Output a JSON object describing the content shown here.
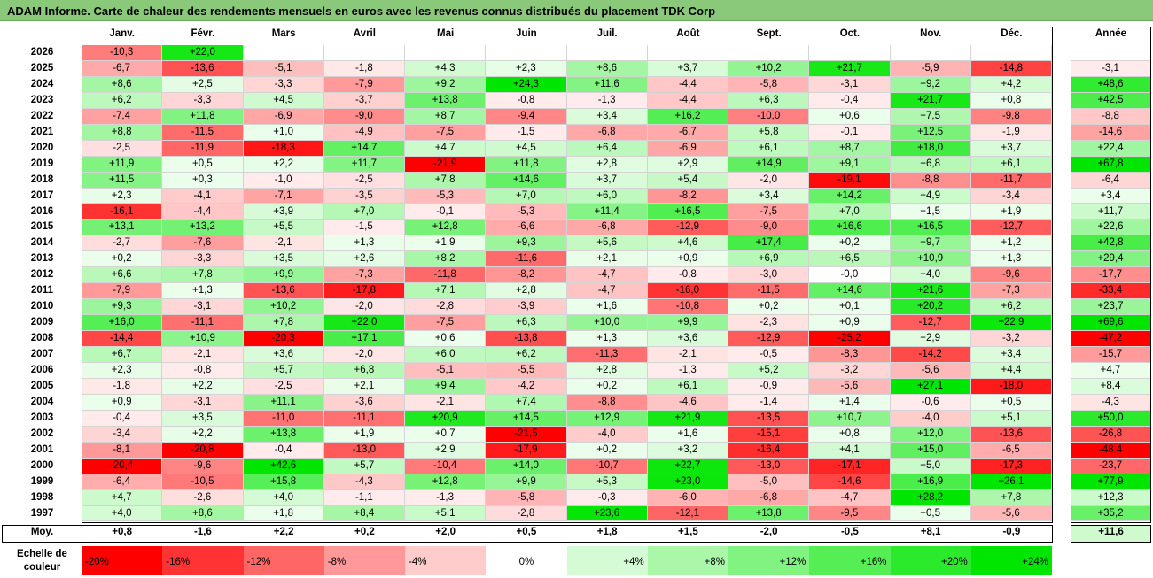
{
  "title": "ADAM Informe. Carte de chaleur des rendements mensuels en euros avec les revenus connus distribués du placement TDK Corp",
  "chart_data": {
    "type": "heatmap",
    "title": "ADAM Informe. Carte de chaleur des rendements mensuels en euros avec les revenus connus distribués du placement TDK Corp",
    "months": [
      "Janv.",
      "Févr.",
      "Mars",
      "Avril",
      "Mai",
      "Juin",
      "Juil.",
      "Août",
      "Sept.",
      "Oct.",
      "Nov.",
      "Déc."
    ],
    "year_label": "Année",
    "rows": [
      {
        "year": "2026",
        "months": [
          "-10,3",
          "+22,0",
          "",
          "",
          "",
          "",
          "",
          "",
          "",
          "",
          "",
          ""
        ],
        "annual": ""
      },
      {
        "year": "2025",
        "months": [
          "-6,7",
          "-13,6",
          "-5,1",
          "-1,8",
          "+4,3",
          "+2,3",
          "+8,6",
          "+3,7",
          "+10,2",
          "+21,7",
          "-5,9",
          "-14,8"
        ],
        "annual": "-3,1"
      },
      {
        "year": "2024",
        "months": [
          "+8,6",
          "+2,5",
          "-3,3",
          "-7,9",
          "+9,2",
          "+24,3",
          "+11,6",
          "-4,4",
          "-5,8",
          "-3,1",
          "+9,2",
          "+4,2"
        ],
        "annual": "+48,6"
      },
      {
        "year": "2023",
        "months": [
          "+6,2",
          "-3,3",
          "+4,5",
          "-3,7",
          "+13,8",
          "-0,8",
          "-1,3",
          "-4,4",
          "+6,3",
          "-0,4",
          "+21,7",
          "+0,8"
        ],
        "annual": "+42,5"
      },
      {
        "year": "2022",
        "months": [
          "-7,4",
          "+11,8",
          "-6,9",
          "-9,0",
          "+8,7",
          "-9,4",
          "+3,4",
          "+16,2",
          "-10,0",
          "+0,6",
          "+7,5",
          "-9,8"
        ],
        "annual": "-8,8"
      },
      {
        "year": "2021",
        "months": [
          "+8,8",
          "-11,5",
          "+1,0",
          "-4,9",
          "-7,5",
          "-1,5",
          "-6,8",
          "-6,7",
          "+5,8",
          "-0,1",
          "+12,5",
          "-1,9"
        ],
        "annual": "-14,6"
      },
      {
        "year": "2020",
        "months": [
          "-2,5",
          "-11,9",
          "-18,3",
          "+14,7",
          "+4,7",
          "+4,5",
          "+6,4",
          "-6,9",
          "+6,1",
          "+8,7",
          "+18,0",
          "+3,7"
        ],
        "annual": "+22,4"
      },
      {
        "year": "2019",
        "months": [
          "+11,9",
          "+0,5",
          "+2,2",
          "+11,7",
          "-21,9",
          "+11,8",
          "+2,8",
          "+2,9",
          "+14,9",
          "+9,1",
          "+6,8",
          "+6,1"
        ],
        "annual": "+67,8"
      },
      {
        "year": "2018",
        "months": [
          "+11,5",
          "+0,3",
          "-1,0",
          "-2,5",
          "+7,8",
          "+14,6",
          "+3,7",
          "+5,4",
          "-2,0",
          "-19,1",
          "-8,8",
          "-11,7"
        ],
        "annual": "-6,4"
      },
      {
        "year": "2017",
        "months": [
          "+2,3",
          "-4,1",
          "-7,1",
          "-3,5",
          "-5,3",
          "+7,0",
          "+6,0",
          "-8,2",
          "+3,4",
          "+14,2",
          "+4,9",
          "-3,4"
        ],
        "annual": "+3,4"
      },
      {
        "year": "2016",
        "months": [
          "-16,1",
          "-4,4",
          "+3,9",
          "+7,0",
          "-0,1",
          "-5,3",
          "+11,4",
          "+16,5",
          "-7,5",
          "+7,0",
          "+1,5",
          "+1,9"
        ],
        "annual": "+11,7"
      },
      {
        "year": "2015",
        "months": [
          "+13,1",
          "+13,2",
          "+5,5",
          "-1,5",
          "+12,8",
          "-6,6",
          "-6,8",
          "-12,9",
          "-9,0",
          "+16,6",
          "+16,5",
          "-12,7"
        ],
        "annual": "+22,6"
      },
      {
        "year": "2014",
        "months": [
          "-2,7",
          "-7,6",
          "-2,1",
          "+1,3",
          "+1,9",
          "+9,3",
          "+5,6",
          "+4,6",
          "+17,4",
          "+0,2",
          "+9,7",
          "+1,2"
        ],
        "annual": "+42,8"
      },
      {
        "year": "2013",
        "months": [
          "+0,2",
          "-3,3",
          "+3,5",
          "+2,6",
          "+8,2",
          "-11,6",
          "+2,1",
          "+0,9",
          "+6,9",
          "+6,5",
          "+10,9",
          "+1,3"
        ],
        "annual": "+29,4"
      },
      {
        "year": "2012",
        "months": [
          "+6,6",
          "+7,8",
          "+9,9",
          "-7,3",
          "-11,8",
          "-8,2",
          "-4,7",
          "-0,8",
          "-3,0",
          "-0,0",
          "+4,0",
          "-9,6"
        ],
        "annual": "-17,7"
      },
      {
        "year": "2011",
        "months": [
          "-7,9",
          "+1,3",
          "-13,6",
          "-17,8",
          "+7,1",
          "+2,8",
          "-4,7",
          "-16,0",
          "-11,5",
          "+14,6",
          "+21,6",
          "-7,3"
        ],
        "annual": "-33,4"
      },
      {
        "year": "2010",
        "months": [
          "+9,3",
          "-3,1",
          "+10,2",
          "-2,0",
          "-2,8",
          "-3,9",
          "+1,6",
          "-10,8",
          "+0,2",
          "+0,1",
          "+20,2",
          "+6,2"
        ],
        "annual": "+23,7"
      },
      {
        "year": "2009",
        "months": [
          "+16,0",
          "-11,1",
          "+7,8",
          "+22,0",
          "-7,5",
          "+6,3",
          "+10,0",
          "+9,9",
          "-2,3",
          "+0,9",
          "-12,7",
          "+22,9"
        ],
        "annual": "+69,6"
      },
      {
        "year": "2008",
        "months": [
          "-14,4",
          "+10,9",
          "-20,3",
          "+17,1",
          "+0,6",
          "-13,8",
          "+1,3",
          "+3,6",
          "-12,9",
          "-25,2",
          "+2,9",
          "-3,2"
        ],
        "annual": "-47,2"
      },
      {
        "year": "2007",
        "months": [
          "+6,7",
          "-2,1",
          "+3,6",
          "-2,0",
          "+6,0",
          "+6,2",
          "-11,3",
          "-2,1",
          "-0,5",
          "-8,3",
          "-14,2",
          "+3,4"
        ],
        "annual": "-15,7"
      },
      {
        "year": "2006",
        "months": [
          "+2,3",
          "-0,8",
          "+5,7",
          "+6,8",
          "-5,1",
          "-5,5",
          "+2,8",
          "-1,3",
          "+5,2",
          "-3,2",
          "-5,6",
          "+4,4"
        ],
        "annual": "+4,7"
      },
      {
        "year": "2005",
        "months": [
          "-1,8",
          "+2,2",
          "-2,5",
          "+2,1",
          "+9,4",
          "-4,2",
          "+0,2",
          "+6,1",
          "-0,9",
          "-5,6",
          "+27,1",
          "-18,0"
        ],
        "annual": "+8,4"
      },
      {
        "year": "2004",
        "months": [
          "+0,9",
          "-3,1",
          "+11,1",
          "-3,6",
          "-2,1",
          "+7,4",
          "-8,8",
          "-4,6",
          "-1,4",
          "+1,4",
          "-0,6",
          "+0,5"
        ],
        "annual": "-4,3"
      },
      {
        "year": "2003",
        "months": [
          "-0,4",
          "+3,5",
          "-11,0",
          "-11,1",
          "+20,9",
          "+14,5",
          "+12,9",
          "+21,9",
          "-13,5",
          "+10,7",
          "-4,0",
          "+5,1"
        ],
        "annual": "+50,0"
      },
      {
        "year": "2002",
        "months": [
          "-3,4",
          "+2,2",
          "+13,8",
          "+1,9",
          "+0,7",
          "-21,5",
          "-4,0",
          "+1,6",
          "-15,1",
          "+0,8",
          "+12,0",
          "-13,6"
        ],
        "annual": "-26,8"
      },
      {
        "year": "2001",
        "months": [
          "-8,1",
          "-20,8",
          "-0,4",
          "-13,0",
          "+2,9",
          "-17,9",
          "+0,2",
          "+3,2",
          "-16,4",
          "+4,1",
          "+15,0",
          "-6,5"
        ],
        "annual": "-48,4"
      },
      {
        "year": "2000",
        "months": [
          "-20,4",
          "-9,6",
          "+42,6",
          "+5,7",
          "-10,4",
          "+14,0",
          "-10,7",
          "+22,7",
          "-13,0",
          "-17,1",
          "+5,0",
          "-17,3"
        ],
        "annual": "-23,7"
      },
      {
        "year": "1999",
        "months": [
          "-6,4",
          "-10,5",
          "+15,8",
          "-4,3",
          "+12,8",
          "+9,9",
          "+5,3",
          "+23,0",
          "-5,0",
          "-14,6",
          "+16,9",
          "+26,1"
        ],
        "annual": "+77,9"
      },
      {
        "year": "1998",
        "months": [
          "+4,7",
          "-2,6",
          "+4,0",
          "-1,1",
          "-1,3",
          "-5,8",
          "-0,3",
          "-6,0",
          "-6,8",
          "-4,7",
          "+28,2",
          "+7,8"
        ],
        "annual": "+12,3"
      },
      {
        "year": "1997",
        "months": [
          "+4,0",
          "+8,6",
          "+1,8",
          "+8,4",
          "+5,1",
          "-2,8",
          "+23,6",
          "-12,1",
          "+13,8",
          "-9,5",
          "+0,5",
          "-5,6"
        ],
        "annual": "+35,2"
      }
    ],
    "average": {
      "label": "Moy.",
      "months": [
        "+0,8",
        "-1,6",
        "+2,2",
        "+0,2",
        "+2,0",
        "+0,5",
        "+1,8",
        "+1,5",
        "-2,0",
        "-0,5",
        "+8,1",
        "-0,9"
      ],
      "annual": "+11,6"
    },
    "color_scale": {
      "label": "Echelle de couleur",
      "stops": [
        "-20%",
        "-16%",
        "-12%",
        "-8%",
        "-4%",
        "0%",
        "+4%",
        "+8%",
        "+12%",
        "+16%",
        "+20%",
        "+24%"
      ],
      "values": [
        -20,
        -16,
        -12,
        -8,
        -4,
        0,
        4,
        8,
        12,
        16,
        20,
        24
      ]
    }
  },
  "colors": {
    "negative_max": "#ff0000",
    "neutral": "#ffffff",
    "positive_max": "#00e600",
    "title_bg": "#8ac97a"
  }
}
